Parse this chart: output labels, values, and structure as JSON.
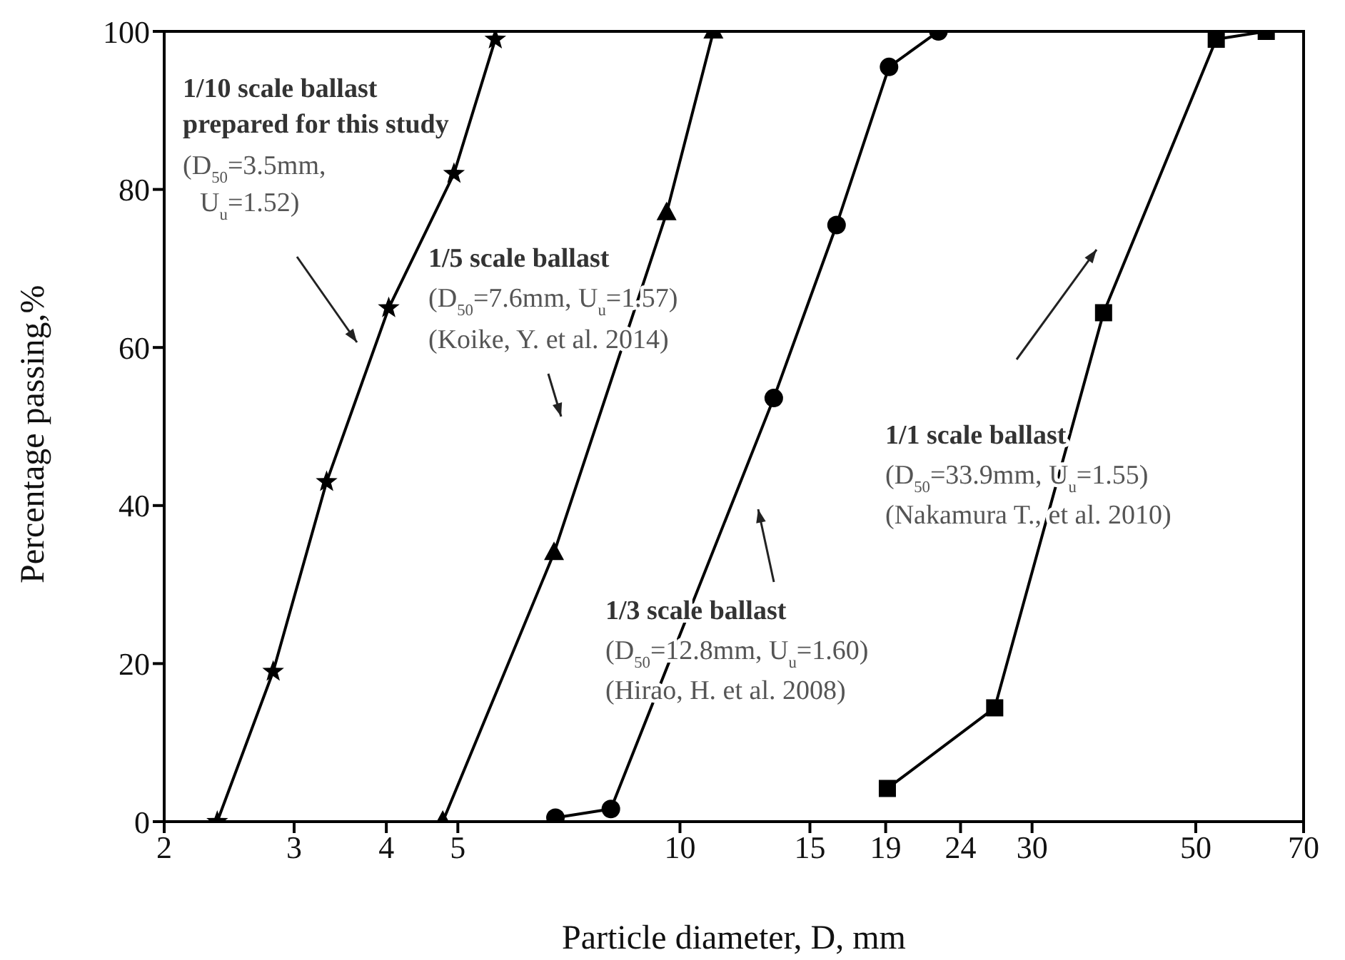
{
  "chart_data": {
    "type": "line",
    "xlabel": "Particle diameter, D, mm",
    "ylabel": "Percentage passing,%",
    "log": "x",
    "xlim": [
      2,
      70
    ],
    "xticks": [
      2,
      3,
      4,
      5,
      10,
      15,
      19,
      24,
      30,
      50,
      70
    ],
    "ylim": [
      0,
      100
    ],
    "yticks": [
      0,
      20,
      40,
      60,
      80,
      100
    ],
    "grid": false,
    "line_style": "solid",
    "series": [
      {
        "color": "#000000",
        "marker": "star",
        "x": [
          2.36,
          2.81,
          3.32,
          4.03,
          4.94,
          5.62
        ],
        "values": [
          0,
          19,
          43,
          65,
          82,
          99
        ]
      },
      {
        "color": "#000000",
        "marker": "triangle",
        "x": [
          4.77,
          6.75,
          9.59,
          11.1
        ],
        "values": [
          0,
          34,
          77,
          100
        ]
      },
      {
        "color": "#000000",
        "marker": "circle",
        "x": [
          6.78,
          8.06,
          13.4,
          16.3,
          19.2,
          22.4
        ],
        "values": [
          0.5,
          1.6,
          53.6,
          75.5,
          95.5,
          100
        ]
      },
      {
        "color": "#000000",
        "marker": "square",
        "x": [
          19.1,
          26.7,
          37.5,
          53.3,
          62.3
        ],
        "values": [
          4.2,
          14.4,
          64.4,
          99,
          100
        ]
      }
    ],
    "annotations": [
      "1/10 scale ballast",
      "prepared for this study",
      "(D$_{50}$=3.5mm,",
      "U$_{u}$=1.52)",
      "1/5 scale ballast",
      "(D$_{50}$=7.6mm, U$_{u}$=1.57)",
      "(Koike, Y. et al. 2014)",
      "1/3 scale ballast",
      "(D$_{50}$=12.8mm, U$_{u}$=1.60)",
      "(Hirao, H. et al. 2008)",
      "1/1 scale ballast",
      "(D$_{50}$=33.9mm, U$_{u}$=1.55)",
      "(Nakamura T., et al. 2010)"
    ]
  }
}
